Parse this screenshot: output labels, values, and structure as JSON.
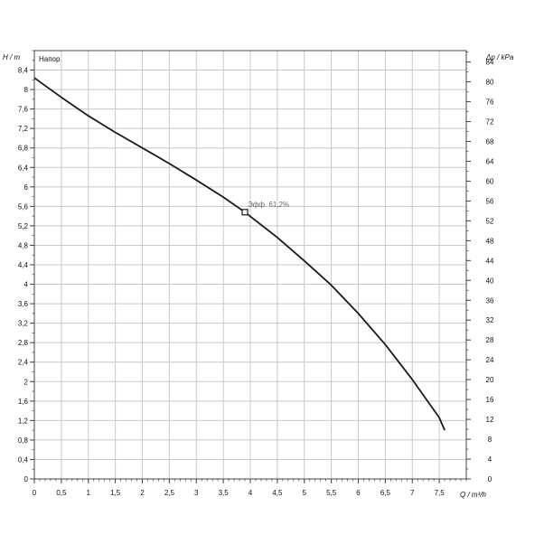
{
  "chart_data": {
    "type": "line",
    "series_label": "Напор",
    "xlabel": "Q / m³/h",
    "ylabel_left": "H / m",
    "ylabel_right": "Δp / kPa",
    "xlim": [
      0,
      8
    ],
    "ylim_left": [
      0,
      8.8
    ],
    "ylim_right": [
      0,
      86.3
    ],
    "x_ticks": [
      0,
      0.5,
      1,
      1.5,
      2,
      2.5,
      3,
      3.5,
      4,
      4.5,
      5,
      5.5,
      6,
      6.5,
      7,
      7.5
    ],
    "x_tick_labels": [
      "0",
      "0,5",
      "1",
      "1,5",
      "2",
      "2,5",
      "3",
      "3,5",
      "4",
      "4,5",
      "5",
      "5,5",
      "6",
      "6,5",
      "7",
      "7,5"
    ],
    "y_left_ticks": [
      0,
      0.4,
      0.8,
      1.2,
      1.6,
      2,
      2.4,
      2.8,
      3.2,
      3.6,
      4,
      4.4,
      4.8,
      5.2,
      5.6,
      6,
      6.4,
      6.8,
      7.2,
      7.6,
      8,
      8.4
    ],
    "y_left_tick_labels": [
      "0",
      "0,4",
      "0,8",
      "1,2",
      "1,6",
      "2",
      "2,4",
      "2,8",
      "3,2",
      "3,6",
      "4",
      "4,4",
      "4,8",
      "5,2",
      "5,6",
      "6",
      "6,4",
      "6,8",
      "7,2",
      "7,6",
      "8",
      "8,4"
    ],
    "y_right_ticks": [
      0,
      4,
      8,
      12,
      16,
      20,
      24,
      28,
      32,
      36,
      40,
      44,
      48,
      52,
      56,
      60,
      64,
      68,
      72,
      76,
      80,
      84
    ],
    "y_right_tick_labels": [
      "0",
      "4",
      "8",
      "12",
      "16",
      "20",
      "24",
      "28",
      "32",
      "36",
      "40",
      "44",
      "48",
      "52",
      "56",
      "60",
      "64",
      "68",
      "72",
      "76",
      "80",
      "84"
    ],
    "grid": true,
    "series": [
      {
        "x": [
          0,
          0.5,
          1,
          1.5,
          2,
          2.5,
          3,
          3.5,
          3.9,
          4.5,
          5,
          5.5,
          6,
          6.5,
          7,
          7.5,
          7.6
        ],
        "y": [
          8.24,
          7.84,
          7.46,
          7.12,
          6.8,
          6.48,
          6.14,
          5.79,
          5.48,
          4.96,
          4.48,
          3.98,
          3.4,
          2.76,
          2.04,
          1.26,
          1.0
        ]
      }
    ],
    "annotations": [
      {
        "text": "Эфф. 61,2%",
        "x": 3.9,
        "y": 5.48
      }
    ]
  }
}
